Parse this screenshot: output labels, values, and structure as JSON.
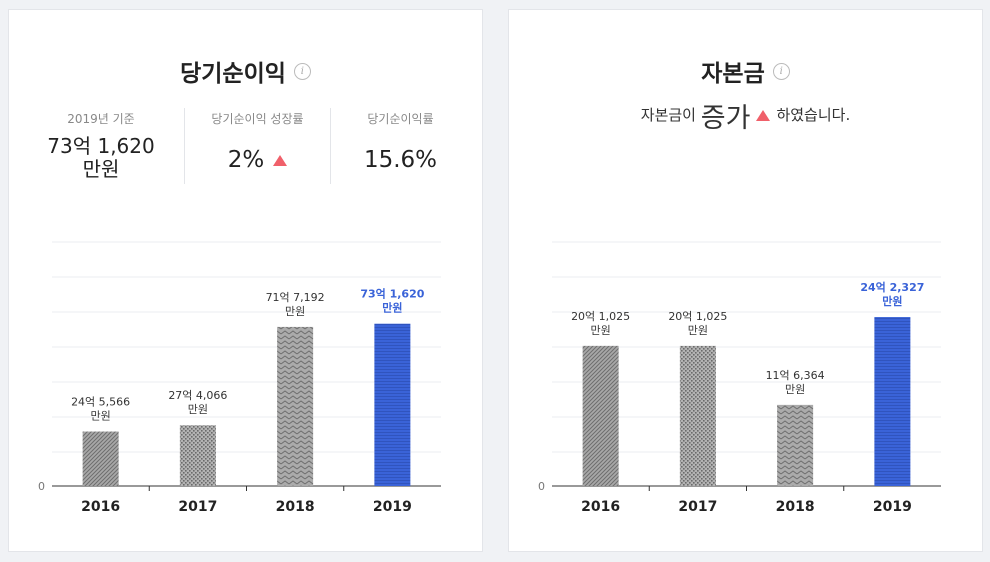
{
  "net_income": {
    "title": "당기순이익",
    "info_icon": "info-icon",
    "stats": {
      "base_label": "2019년 기준",
      "base_value_line1": "73억 1,620",
      "base_value_line2": "만원",
      "growth_label": "당기순이익 성장률",
      "growth_value": "2%",
      "growth_direction": "up",
      "margin_label": "당기순이익률",
      "margin_value": "15.6%"
    }
  },
  "capital": {
    "title": "자본금",
    "info_icon": "info-icon",
    "summary_prefix": "자본금이",
    "summary_emphasis": "증가",
    "summary_suffix": "하였습니다.",
    "summary_direction": "up"
  },
  "colors": {
    "gray_bar": "#9a9a9a",
    "highlight_bar": "#3a63d8",
    "highlight_label": "#3a63d8",
    "up_arrow": "#f0606a"
  },
  "chart_data": [
    {
      "type": "bar",
      "categories": [
        "2016",
        "2017",
        "2018",
        "2019"
      ],
      "values": [
        245566,
        274066,
        717192,
        731620
      ],
      "value_unit": "만원",
      "data_labels": [
        [
          "24억 5,566",
          "만원"
        ],
        [
          "27억 4,066",
          "만원"
        ],
        [
          "71억 7,192",
          "만원"
        ],
        [
          "73억 1,620",
          "만원"
        ]
      ],
      "patterns": [
        "diagonal",
        "dots",
        "zigzag",
        "horizontal"
      ],
      "highlight_index": 3,
      "y_tick_label": "0",
      "ylim": [
        0,
        1100000
      ],
      "grid": true
    },
    {
      "type": "bar",
      "categories": [
        "2016",
        "2017",
        "2018",
        "2019"
      ],
      "values": [
        201025,
        201025,
        116364,
        242327
      ],
      "value_unit": "만원",
      "data_labels": [
        [
          "20억 1,025",
          "만원"
        ],
        [
          "20억 1,025",
          "만원"
        ],
        [
          "11억 6,364",
          "만원"
        ],
        [
          "24억 2,327",
          "만원"
        ]
      ],
      "patterns": [
        "diagonal",
        "dots",
        "zigzag",
        "horizontal"
      ],
      "highlight_index": 3,
      "y_tick_label": "0",
      "ylim": [
        0,
        350000
      ],
      "grid": true
    }
  ]
}
